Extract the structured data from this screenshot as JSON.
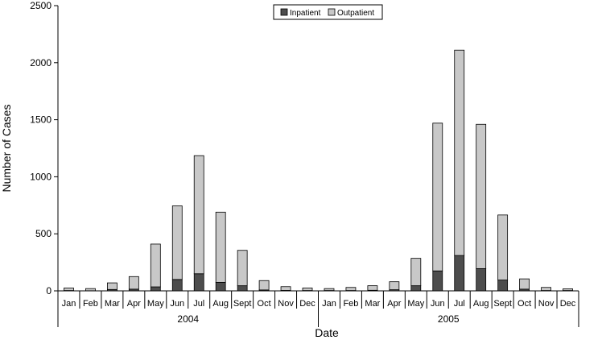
{
  "chart_data": {
    "type": "bar",
    "stacked": true,
    "categories": [
      "Jan",
      "Feb",
      "Mar",
      "Apr",
      "May",
      "Jun",
      "Jul",
      "Aug",
      "Sept",
      "Oct",
      "Nov",
      "Dec",
      "Jan",
      "Feb",
      "Mar",
      "Apr",
      "May",
      "Jun",
      "Jul",
      "Aug",
      "Sept",
      "Oct",
      "Nov",
      "Dec"
    ],
    "groups": [
      {
        "label": "2004",
        "from": 0,
        "to": 11
      },
      {
        "label": "2005",
        "from": 12,
        "to": 23
      }
    ],
    "series": [
      {
        "name": "Inpatient",
        "color": "#4d4d4d",
        "values": [
          3,
          1,
          12,
          15,
          35,
          100,
          150,
          75,
          45,
          8,
          4,
          3,
          3,
          3,
          5,
          10,
          45,
          175,
          310,
          195,
          95,
          15,
          3,
          3
        ]
      },
      {
        "name": "Outpatient",
        "color": "#c8c8c8",
        "values": [
          22,
          19,
          58,
          110,
          375,
          645,
          1035,
          615,
          310,
          82,
          33,
          22,
          17,
          27,
          40,
          70,
          240,
          1295,
          1800,
          1265,
          570,
          90,
          27,
          15
        ]
      }
    ],
    "xlabel": "Date",
    "ylabel": "Number of Cases",
    "ylim": [
      0,
      2500
    ],
    "yticks": [
      0,
      500,
      1000,
      1500,
      2000,
      2500
    ],
    "grid": false,
    "legend_position": "top-center"
  }
}
